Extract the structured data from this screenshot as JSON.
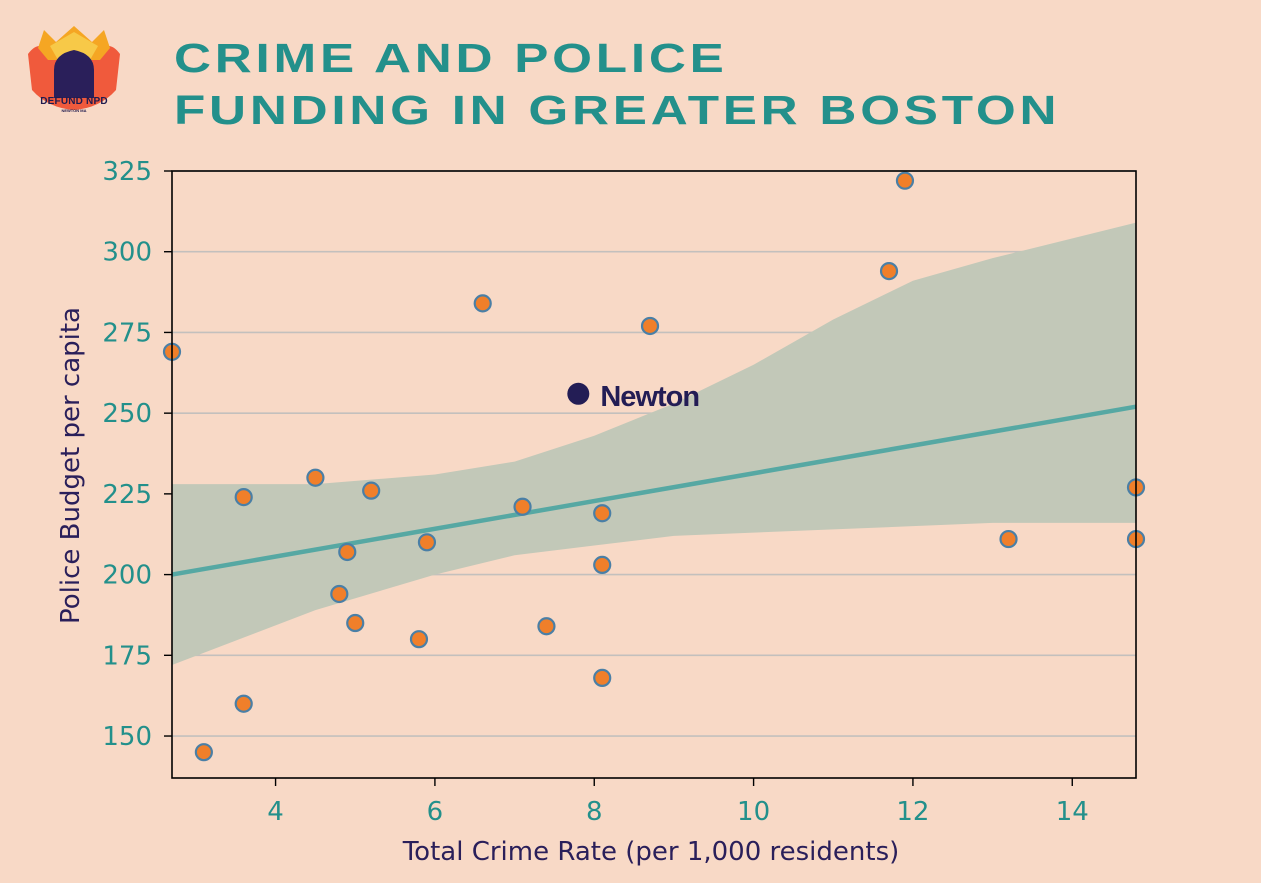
{
  "header": {
    "title_line1": "CRIME AND POLICE",
    "title_line2": "FUNDING IN GREATER BOSTON",
    "logo_text": "DEFUND NPD",
    "logo_subtext": "NEWTON MA"
  },
  "colors": {
    "background": "#f8d9c6",
    "title": "#23908b",
    "tick_label": "#23908b",
    "axis_label": "#2a1f5a",
    "point_fill": "#f07f2a",
    "point_edge": "#4a7fa6",
    "trend_line": "#56a8a3",
    "confidence_band": "#c2c8b8",
    "grid": "#c3c0bd",
    "highlight": "#231d55"
  },
  "chart_data": {
    "type": "scatter",
    "xlabel": "Total Crime Rate (per 1,000 residents)",
    "ylabel": "Police Budget per capita",
    "xlim": [
      2.7,
      14.8
    ],
    "ylim": [
      137,
      325
    ],
    "xticks": [
      4,
      6,
      8,
      10,
      12,
      14
    ],
    "yticks": [
      150,
      175,
      200,
      225,
      250,
      275,
      300,
      325
    ],
    "grid": "horizontal",
    "points": [
      {
        "x": 2.7,
        "y": 269
      },
      {
        "x": 3.1,
        "y": 145
      },
      {
        "x": 3.6,
        "y": 224
      },
      {
        "x": 3.6,
        "y": 160
      },
      {
        "x": 4.5,
        "y": 230
      },
      {
        "x": 4.8,
        "y": 194
      },
      {
        "x": 4.9,
        "y": 207
      },
      {
        "x": 5.0,
        "y": 185
      },
      {
        "x": 5.2,
        "y": 226
      },
      {
        "x": 5.8,
        "y": 180
      },
      {
        "x": 5.9,
        "y": 210
      },
      {
        "x": 6.6,
        "y": 284
      },
      {
        "x": 7.1,
        "y": 221
      },
      {
        "x": 7.4,
        "y": 184
      },
      {
        "x": 8.1,
        "y": 219
      },
      {
        "x": 8.1,
        "y": 203
      },
      {
        "x": 8.1,
        "y": 168
      },
      {
        "x": 8.7,
        "y": 277
      },
      {
        "x": 11.7,
        "y": 294
      },
      {
        "x": 11.9,
        "y": 322
      },
      {
        "x": 13.2,
        "y": 211
      },
      {
        "x": 14.8,
        "y": 227
      },
      {
        "x": 14.8,
        "y": 211
      }
    ],
    "highlight": {
      "label": "Newton",
      "x": 7.8,
      "y": 256
    },
    "regression": {
      "line": [
        [
          2.7,
          200
        ],
        [
          14.8,
          252
        ]
      ],
      "ci_x": [
        2.7,
        4.5,
        6.0,
        7.0,
        8.0,
        9.0,
        10.0,
        11.0,
        12.0,
        13.0,
        14.8
      ],
      "ci_upper": [
        228,
        228,
        231,
        235,
        243,
        253,
        265,
        279,
        291,
        298,
        309
      ],
      "ci_lower": [
        172,
        189,
        200,
        206,
        209,
        212,
        213,
        214,
        215,
        216,
        216
      ]
    }
  }
}
